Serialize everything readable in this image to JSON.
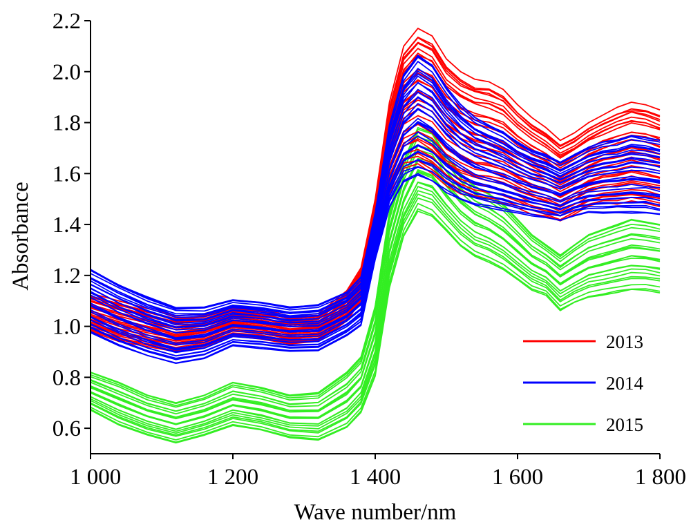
{
  "chart_data": {
    "type": "line",
    "title": "",
    "xlabel": "Wave number/nm",
    "ylabel": "Absorbance",
    "xlim": [
      1000,
      1800
    ],
    "ylim": [
      0.5,
      2.2
    ],
    "x_ticks": [
      1000,
      1200,
      1400,
      1600,
      1800
    ],
    "x_tick_labels": [
      "1 000",
      "1 200",
      "1 400",
      "1 600",
      "1 800"
    ],
    "y_ticks": [
      0.6,
      0.8,
      1.0,
      1.2,
      1.4,
      1.6,
      1.8,
      2.0,
      2.2
    ],
    "y_tick_labels": [
      "0.6",
      "0.8",
      "1.0",
      "1.2",
      "1.4",
      "1.6",
      "1.8",
      "2.0",
      "2.2"
    ],
    "grid": false,
    "legend_position": "bottom-right",
    "x": [
      1000,
      1040,
      1080,
      1120,
      1160,
      1200,
      1240,
      1280,
      1320,
      1360,
      1380,
      1400,
      1420,
      1440,
      1460,
      1480,
      1500,
      1520,
      1540,
      1560,
      1580,
      1600,
      1620,
      1640,
      1660,
      1680,
      1700,
      1720,
      1740,
      1760,
      1780,
      1800
    ],
    "series": [
      {
        "name": "2013",
        "color": "#ff0000",
        "count": 34,
        "upper_envelope": [
          1.13,
          1.1,
          1.07,
          1.04,
          1.05,
          1.08,
          1.07,
          1.04,
          1.05,
          1.14,
          1.23,
          1.5,
          1.88,
          2.1,
          2.17,
          2.14,
          2.05,
          2.0,
          1.97,
          1.96,
          1.93,
          1.87,
          1.82,
          1.78,
          1.73,
          1.76,
          1.8,
          1.83,
          1.86,
          1.88,
          1.87,
          1.85
        ],
        "lower_envelope": [
          0.98,
          0.94,
          0.92,
          0.9,
          0.92,
          0.96,
          0.95,
          0.93,
          0.94,
          1.02,
          1.1,
          1.32,
          1.52,
          1.62,
          1.63,
          1.6,
          1.55,
          1.52,
          1.5,
          1.49,
          1.48,
          1.46,
          1.44,
          1.43,
          1.41,
          1.44,
          1.47,
          1.48,
          1.48,
          1.49,
          1.48,
          1.47
        ]
      },
      {
        "name": "2014",
        "color": "#0000ff",
        "count": 34,
        "upper_envelope": [
          1.23,
          1.17,
          1.12,
          1.08,
          1.08,
          1.11,
          1.1,
          1.08,
          1.09,
          1.14,
          1.2,
          1.45,
          1.8,
          2.0,
          2.08,
          2.04,
          1.95,
          1.88,
          1.83,
          1.8,
          1.77,
          1.73,
          1.7,
          1.68,
          1.65,
          1.68,
          1.71,
          1.73,
          1.74,
          1.76,
          1.75,
          1.74
        ],
        "lower_envelope": [
          0.97,
          0.92,
          0.88,
          0.85,
          0.87,
          0.92,
          0.91,
          0.9,
          0.9,
          0.96,
          1.0,
          1.26,
          1.46,
          1.56,
          1.58,
          1.56,
          1.52,
          1.49,
          1.47,
          1.46,
          1.45,
          1.44,
          1.43,
          1.42,
          1.41,
          1.43,
          1.44,
          1.44,
          1.44,
          1.44,
          1.44,
          1.43
        ]
      },
      {
        "name": "2015",
        "color": "#33ee22",
        "count": 22,
        "upper_envelope": [
          0.82,
          0.78,
          0.73,
          0.7,
          0.73,
          0.78,
          0.76,
          0.73,
          0.74,
          0.82,
          0.88,
          1.08,
          1.45,
          1.65,
          1.78,
          1.76,
          1.67,
          1.6,
          1.55,
          1.52,
          1.48,
          1.42,
          1.36,
          1.32,
          1.28,
          1.32,
          1.36,
          1.38,
          1.4,
          1.42,
          1.41,
          1.4
        ],
        "lower_envelope": [
          0.67,
          0.61,
          0.57,
          0.54,
          0.57,
          0.61,
          0.59,
          0.56,
          0.55,
          0.6,
          0.66,
          0.8,
          1.15,
          1.35,
          1.45,
          1.43,
          1.37,
          1.31,
          1.27,
          1.25,
          1.22,
          1.18,
          1.14,
          1.12,
          1.06,
          1.09,
          1.11,
          1.12,
          1.13,
          1.14,
          1.14,
          1.13
        ]
      }
    ]
  }
}
